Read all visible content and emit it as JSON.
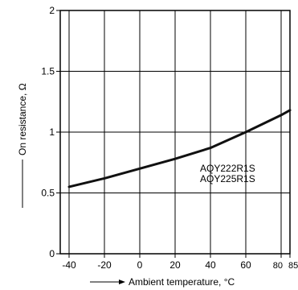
{
  "chart_data": {
    "type": "line",
    "title": "",
    "xlabel": "Ambient temperature, °C",
    "ylabel": "On resistance, Ω",
    "xlim": [
      -45,
      85
    ],
    "ylim": [
      0,
      2
    ],
    "x_ticks": [
      -40,
      -20,
      0,
      20,
      40,
      60,
      80,
      85
    ],
    "x_tick_labels": [
      "-40",
      "-20",
      "0",
      "20",
      "40",
      "60",
      "80",
      "85"
    ],
    "y_ticks": [
      0,
      0.5,
      1,
      1.5,
      2
    ],
    "y_tick_labels": [
      "0",
      "0.5",
      "1",
      "1.5",
      "2"
    ],
    "grid": true,
    "series": [
      {
        "x": [
          -40,
          -20,
          0,
          20,
          40,
          60,
          80,
          85
        ],
        "y": [
          0.55,
          0.62,
          0.7,
          0.78,
          0.87,
          1.0,
          1.14,
          1.18
        ]
      }
    ],
    "annotations": [
      "AQY222R1S",
      "AQY225R1S"
    ]
  }
}
